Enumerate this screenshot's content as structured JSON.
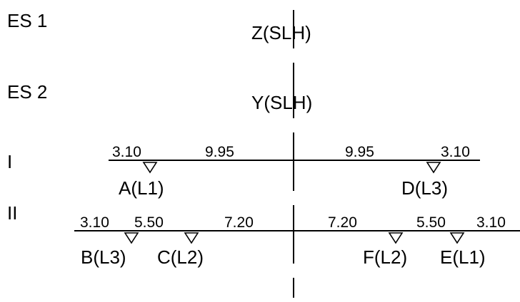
{
  "rows": {
    "es1": {
      "label": "ES 1",
      "load": "Z(SLH)"
    },
    "es2": {
      "label": "ES 2",
      "load": "Y(SLH)"
    },
    "r1": {
      "label": "I",
      "dims": [
        "3.10",
        "9.95",
        "9.95",
        "3.10"
      ],
      "loads": [
        "A(L1)",
        "D(L3)"
      ]
    },
    "r2": {
      "label": "II",
      "dims": [
        "3.10",
        "5.50",
        "7.20",
        "7.20",
        "5.50",
        "3.10"
      ],
      "loads": [
        "B(L3)",
        "C(L2)",
        "F(L2)",
        "E(L1)"
      ]
    }
  }
}
